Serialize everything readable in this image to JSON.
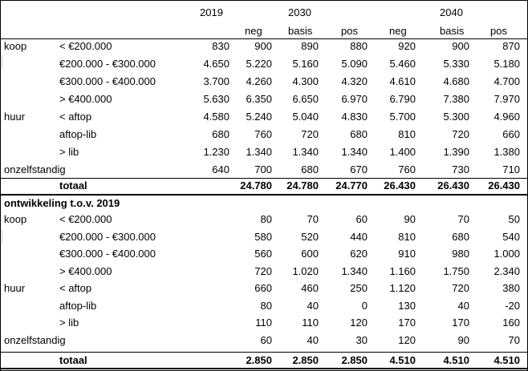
{
  "header": {
    "years": [
      "2019",
      "2030",
      "2040"
    ],
    "scenarios": [
      "neg",
      "basis",
      "pos",
      "neg",
      "basis",
      "pos"
    ]
  },
  "table1": {
    "rows": [
      {
        "group": "koop",
        "label": "< €200.000",
        "values": [
          "830",
          "900",
          "890",
          "880",
          "920",
          "900",
          "870"
        ]
      },
      {
        "group": "",
        "label": "€200.000 - €300.000",
        "values": [
          "4.650",
          "5.220",
          "5.160",
          "5.090",
          "5.460",
          "5.330",
          "5.180"
        ]
      },
      {
        "group": "",
        "label": "€300.000 - €400.000",
        "values": [
          "3.700",
          "4.260",
          "4.300",
          "4.320",
          "4.610",
          "4.680",
          "4.700"
        ]
      },
      {
        "group": "",
        "label": "> €400.000",
        "values": [
          "5.630",
          "6.350",
          "6.650",
          "6.970",
          "6.790",
          "7.380",
          "7.970"
        ]
      },
      {
        "group": "huur",
        "label": "< aftop",
        "values": [
          "4.580",
          "5.240",
          "5.040",
          "4.830",
          "5.700",
          "5.300",
          "4.960"
        ]
      },
      {
        "group": "",
        "label": "aftop-lib",
        "values": [
          "680",
          "760",
          "720",
          "680",
          "810",
          "720",
          "660"
        ]
      },
      {
        "group": "",
        "label": "> lib",
        "values": [
          "1.230",
          "1.340",
          "1.340",
          "1.340",
          "1.400",
          "1.390",
          "1.380"
        ]
      },
      {
        "group": "onzelfstandig",
        "label": "",
        "values": [
          "640",
          "700",
          "680",
          "670",
          "760",
          "730",
          "710"
        ]
      }
    ],
    "total_label": "totaal",
    "total_values": [
      "",
      "24.780",
      "24.780",
      "24.770",
      "26.430",
      "26.430",
      "26.430"
    ]
  },
  "table2": {
    "section_title": "ontwikkeling t.o.v. 2019",
    "rows": [
      {
        "group": "koop",
        "label": "< €200.000",
        "values": [
          "",
          "80",
          "70",
          "60",
          "90",
          "70",
          "50"
        ]
      },
      {
        "group": "",
        "label": "€200.000 - €300.000",
        "values": [
          "",
          "580",
          "520",
          "440",
          "810",
          "680",
          "540"
        ]
      },
      {
        "group": "",
        "label": "€300.000 - €400.000",
        "values": [
          "",
          "560",
          "600",
          "620",
          "910",
          "980",
          "1.000"
        ]
      },
      {
        "group": "",
        "label": "> €400.000",
        "values": [
          "",
          "720",
          "1.020",
          "1.340",
          "1.160",
          "1.750",
          "2.340"
        ]
      },
      {
        "group": "huur",
        "label": "< aftop",
        "values": [
          "",
          "660",
          "460",
          "250",
          "1.120",
          "720",
          "380"
        ]
      },
      {
        "group": "",
        "label": "aftop-lib",
        "values": [
          "",
          "80",
          "40",
          "0",
          "130",
          "40",
          "-20"
        ]
      },
      {
        "group": "",
        "label": "> lib",
        "values": [
          "",
          "110",
          "110",
          "120",
          "170",
          "170",
          "160"
        ]
      },
      {
        "group": "onzelfstandig",
        "label": "",
        "values": [
          "",
          "60",
          "40",
          "30",
          "120",
          "90",
          "70"
        ]
      }
    ],
    "total_label": "totaal",
    "total_values": [
      "",
      "2.850",
      "2.850",
      "2.850",
      "4.510",
      "4.510",
      "4.510"
    ]
  }
}
